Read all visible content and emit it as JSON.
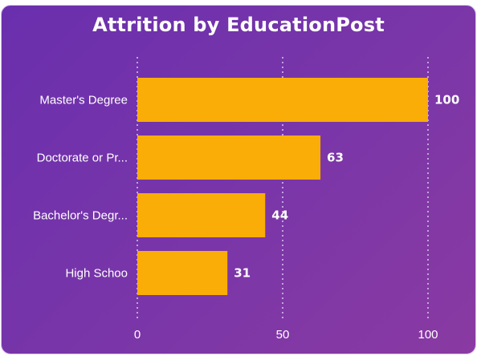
{
  "colors": {
    "bar": "#f9ad06",
    "grid": "#d9c7f0",
    "text": "#ffffff"
  },
  "chart_data": {
    "type": "bar",
    "orientation": "horizontal",
    "title": "Attrition by EducationPost",
    "categories": [
      "Master's Degree",
      "Doctorate or Pr...",
      "Bachelor's Degr...",
      "High Schoo"
    ],
    "values": [
      100,
      63,
      44,
      31
    ],
    "xlim": [
      0,
      100
    ],
    "xticks": [
      0,
      50,
      100
    ],
    "grid": "vertical-dotted",
    "legend": "none"
  }
}
